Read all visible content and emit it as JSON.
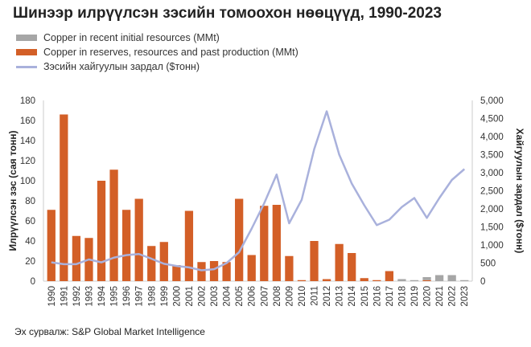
{
  "chart_data": {
    "type": "bar",
    "title": "Шинээр илрүүлсэн зэсийн томоохон нөөцүүд, 1990-2023",
    "source": "Эх сурвалж: S&P Global Market Intelligence",
    "ylabel": "Илрүүлсэн зэс (сая тонн)",
    "y2label": "Хайгуулын зардал ($тонн)",
    "ylim": [
      0,
      180
    ],
    "y2lim": [
      0,
      5000
    ],
    "yticks": [
      "0",
      "20",
      "40",
      "60",
      "80",
      "100",
      "120",
      "140",
      "160",
      "180"
    ],
    "y2ticks": [
      "0",
      "500",
      "1,000",
      "1,500",
      "2,000",
      "2,500",
      "3,000",
      "3,500",
      "4,000",
      "4,500",
      "5,000"
    ],
    "categories": [
      "1990",
      "1991",
      "1992",
      "1993",
      "1994",
      "1995",
      "1996",
      "1997",
      "1998",
      "1999",
      "2000",
      "2001",
      "2002",
      "2003",
      "2004",
      "2005",
      "2006",
      "2007",
      "2008",
      "2009",
      "2010",
      "2011",
      "2012",
      "2013",
      "2014",
      "2015",
      "2016",
      "2017",
      "2018",
      "2019",
      "2020",
      "2021",
      "2022",
      "2023"
    ],
    "series": [
      {
        "name": "Copper in recent initial resources (MMt)",
        "type": "bar",
        "color": "#a6a6a6",
        "values": [
          0,
          0,
          0,
          0,
          0,
          0,
          0,
          0,
          0,
          0,
          0,
          0,
          0,
          0,
          0,
          0,
          0,
          0,
          0,
          0,
          0,
          0,
          0,
          0,
          0,
          0,
          0,
          0,
          2,
          1,
          3,
          6,
          6,
          1
        ]
      },
      {
        "name": "Copper in reserves, resources and past production (MMt)",
        "type": "bar",
        "color": "#d35f27",
        "values": [
          71,
          166,
          45,
          43,
          100,
          111,
          71,
          82,
          35,
          39,
          16,
          70,
          19,
          20,
          19,
          82,
          26,
          75,
          76,
          25,
          1,
          40,
          2,
          37,
          28,
          3,
          1,
          10,
          0,
          0,
          1,
          0,
          0,
          0
        ]
      },
      {
        "name": "Зэсийн хайгуулын зардал ($тонн)",
        "type": "line",
        "axis": "right",
        "color": "#a9b1dc",
        "values": [
          520,
          470,
          470,
          600,
          520,
          650,
          720,
          750,
          620,
          480,
          420,
          380,
          300,
          330,
          500,
          800,
          1450,
          2150,
          2950,
          1600,
          2250,
          3650,
          4700,
          3500,
          2700,
          2100,
          1550,
          1700,
          2050,
          2300,
          1750,
          2300,
          2800,
          3100
        ]
      }
    ]
  }
}
